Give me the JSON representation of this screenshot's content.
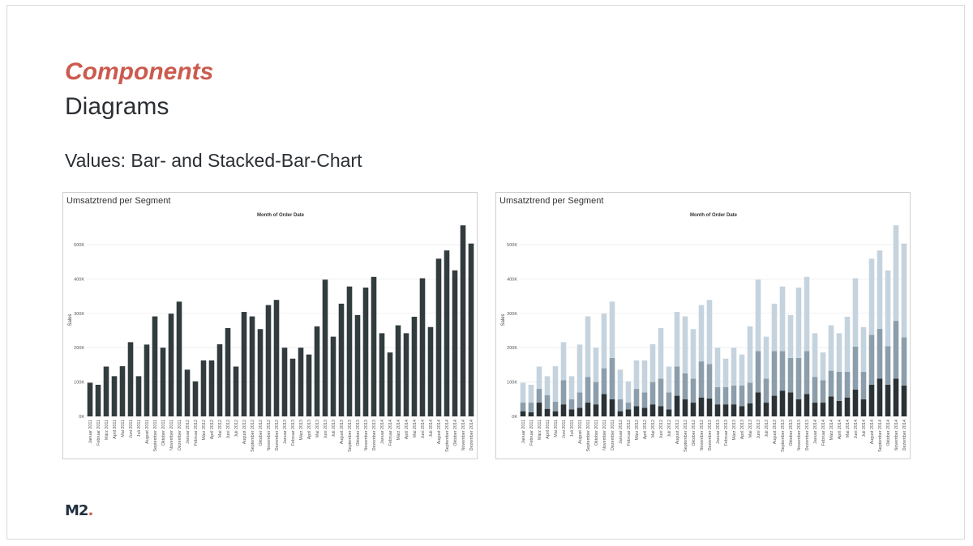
{
  "slide": {
    "kicker": "Components",
    "title": "Diagrams",
    "subtitle": "Values: Bar- and Stacked-Bar-Chart",
    "logo": "M2",
    "logo_dot": "."
  },
  "colors": {
    "accent": "#cc5a4e",
    "bar_dark": "#323b3e",
    "seg_bottom": "#2a3236",
    "seg_middle": "#8c9dab",
    "seg_top": "#c5d3de",
    "gridline": "#eeeeee"
  },
  "chart_data": [
    {
      "type": "bar",
      "title": "Umsatztrend per Segment",
      "column_header": "Month of Order Date",
      "ylabel": "Sales",
      "ylim": [
        0,
        580000
      ],
      "yticks": [
        0,
        100000,
        200000,
        300000,
        400000,
        500000
      ],
      "ytick_labels": [
        "0K",
        "100K",
        "200K",
        "300K",
        "400K",
        "500K"
      ],
      "categories": [
        "Januar 2011",
        "Februar 2011",
        "März 2011",
        "April 2011",
        "Mai 2011",
        "Juni 2011",
        "Juli 2011",
        "August 2011",
        "September 2011",
        "Oktober 2011",
        "November 2011",
        "Dezember 2011",
        "Januar 2012",
        "Februar 2012",
        "März 2012",
        "April 2012",
        "Mai 2012",
        "Juni 2012",
        "Juli 2012",
        "August 2012",
        "September 2012",
        "Oktober 2012",
        "November 2012",
        "Dezember 2012",
        "Januar 2013",
        "Februar 2013",
        "März 2013",
        "April 2013",
        "Mai 2013",
        "Juni 2013",
        "Juli 2013",
        "August 2013",
        "September 2013",
        "Oktober 2013",
        "November 2013",
        "Dezember 2013",
        "Januar 2014",
        "Februar 2014",
        "März 2014",
        "April 2014",
        "Mai 2014",
        "Juni 2014",
        "Juli 2014",
        "August 2014",
        "September 2014",
        "Oktober 2014",
        "November 2014",
        "Dezember 2014"
      ],
      "values": [
        98000,
        92000,
        145000,
        117000,
        146000,
        216000,
        117000,
        209000,
        291000,
        200000,
        299000,
        334000,
        136000,
        102000,
        163000,
        163000,
        210000,
        257000,
        145000,
        304000,
        291000,
        254000,
        324000,
        339000,
        200000,
        168000,
        200000,
        180000,
        262000,
        398000,
        232000,
        328000,
        378000,
        295000,
        375000,
        406000,
        242000,
        186000,
        265000,
        242000,
        290000,
        402000,
        260000,
        459000,
        483000,
        425000,
        556000,
        503000
      ]
    },
    {
      "type": "bar",
      "stacked": true,
      "title": "Umsatztrend per Segment",
      "column_header": "Month of Order Date",
      "ylabel": "Sales",
      "ylim": [
        0,
        580000
      ],
      "yticks": [
        0,
        100000,
        200000,
        300000,
        400000,
        500000
      ],
      "ytick_labels": [
        "0K",
        "100K",
        "200K",
        "300K",
        "400K",
        "500K"
      ],
      "categories": [
        "Januar 2011",
        "Februar 2011",
        "März 2011",
        "April 2011",
        "Mai 2011",
        "Juni 2011",
        "Juli 2011",
        "August 2011",
        "September 2011",
        "Oktober 2011",
        "November 2011",
        "Dezember 2011",
        "Januar 2012",
        "Februar 2012",
        "März 2012",
        "April 2012",
        "Mai 2012",
        "Juni 2012",
        "Juli 2012",
        "August 2012",
        "September 2012",
        "Oktober 2012",
        "November 2012",
        "Dezember 2012",
        "Januar 2013",
        "Februar 2013",
        "März 2013",
        "April 2013",
        "Mai 2013",
        "Juni 2013",
        "Juli 2013",
        "August 2013",
        "September 2013",
        "Oktober 2013",
        "November 2013",
        "Dezember 2013",
        "Januar 2014",
        "Februar 2014",
        "März 2014",
        "April 2014",
        "Mai 2014",
        "Juni 2014",
        "Juli 2014",
        "August 2014",
        "September 2014",
        "Oktober 2014",
        "November 2014",
        "Dezember 2014"
      ],
      "series": [
        {
          "values": [
            15000,
            12000,
            40000,
            22000,
            15000,
            35000,
            20000,
            25000,
            40000,
            35000,
            65000,
            50000,
            15000,
            20000,
            30000,
            25000,
            35000,
            30000,
            20000,
            60000,
            50000,
            40000,
            55000,
            52000,
            35000,
            35000,
            35000,
            30000,
            38000,
            70000,
            40000,
            60000,
            75000,
            70000,
            50000,
            65000,
            40000,
            40000,
            58000,
            45000,
            55000,
            78000,
            50000,
            92000,
            110000,
            92000,
            110000,
            90000
          ]
        },
        {
          "values": [
            25000,
            28000,
            40000,
            40000,
            28000,
            70000,
            30000,
            45000,
            75000,
            65000,
            75000,
            120000,
            35000,
            20000,
            50000,
            45000,
            65000,
            80000,
            50000,
            85000,
            75000,
            70000,
            105000,
            100000,
            50000,
            50000,
            55000,
            60000,
            60000,
            120000,
            70000,
            130000,
            115000,
            100000,
            120000,
            125000,
            75000,
            65000,
            75000,
            85000,
            75000,
            125000,
            80000,
            145000,
            145000,
            112000,
            168000,
            140000
          ]
        },
        {
          "values": [
            58000,
            52000,
            65000,
            55000,
            103000,
            111000,
            67000,
            139000,
            176000,
            100000,
            159000,
            164000,
            86000,
            62000,
            83000,
            93000,
            110000,
            147000,
            75000,
            159000,
            166000,
            144000,
            164000,
            187000,
            115000,
            83000,
            110000,
            90000,
            164000,
            208000,
            122000,
            138000,
            188000,
            125000,
            205000,
            216000,
            127000,
            81000,
            132000,
            112000,
            160000,
            199000,
            130000,
            222000,
            228000,
            221000,
            278000,
            273000
          ]
        }
      ]
    }
  ]
}
